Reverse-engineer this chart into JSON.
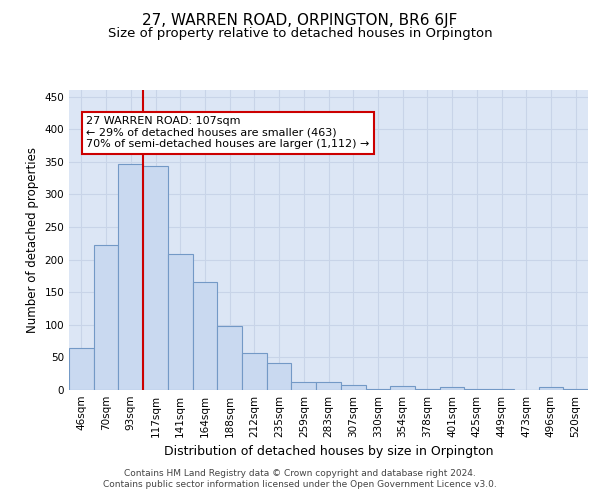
{
  "title": "27, WARREN ROAD, ORPINGTON, BR6 6JF",
  "subtitle": "Size of property relative to detached houses in Orpington",
  "xlabel": "Distribution of detached houses by size in Orpington",
  "ylabel": "Number of detached properties",
  "categories": [
    "46sqm",
    "70sqm",
    "93sqm",
    "117sqm",
    "141sqm",
    "164sqm",
    "188sqm",
    "212sqm",
    "235sqm",
    "259sqm",
    "283sqm",
    "307sqm",
    "330sqm",
    "354sqm",
    "378sqm",
    "401sqm",
    "425sqm",
    "449sqm",
    "473sqm",
    "496sqm",
    "520sqm"
  ],
  "values": [
    65,
    222,
    347,
    344,
    208,
    165,
    98,
    56,
    42,
    12,
    12,
    7,
    2,
    6,
    2,
    4,
    2,
    2,
    0,
    4,
    2
  ],
  "bar_color": "#c9d9f0",
  "bar_edge_color": "#7399c6",
  "bar_edge_width": 0.8,
  "property_line_x": 2.5,
  "annotation_text": "27 WARREN ROAD: 107sqm\n← 29% of detached houses are smaller (463)\n70% of semi-detached houses are larger (1,112) →",
  "annotation_box_color": "#ffffff",
  "annotation_box_edge_color": "#cc0000",
  "property_line_color": "#cc0000",
  "ylim": [
    0,
    460
  ],
  "yticks": [
    0,
    50,
    100,
    150,
    200,
    250,
    300,
    350,
    400,
    450
  ],
  "grid_color": "#c8d4e8",
  "background_color": "#dce6f5",
  "footer_line1": "Contains HM Land Registry data © Crown copyright and database right 2024.",
  "footer_line2": "Contains public sector information licensed under the Open Government Licence v3.0.",
  "title_fontsize": 11,
  "subtitle_fontsize": 9.5,
  "ylabel_fontsize": 8.5,
  "xlabel_fontsize": 9,
  "tick_fontsize": 7.5,
  "annotation_fontsize": 8
}
